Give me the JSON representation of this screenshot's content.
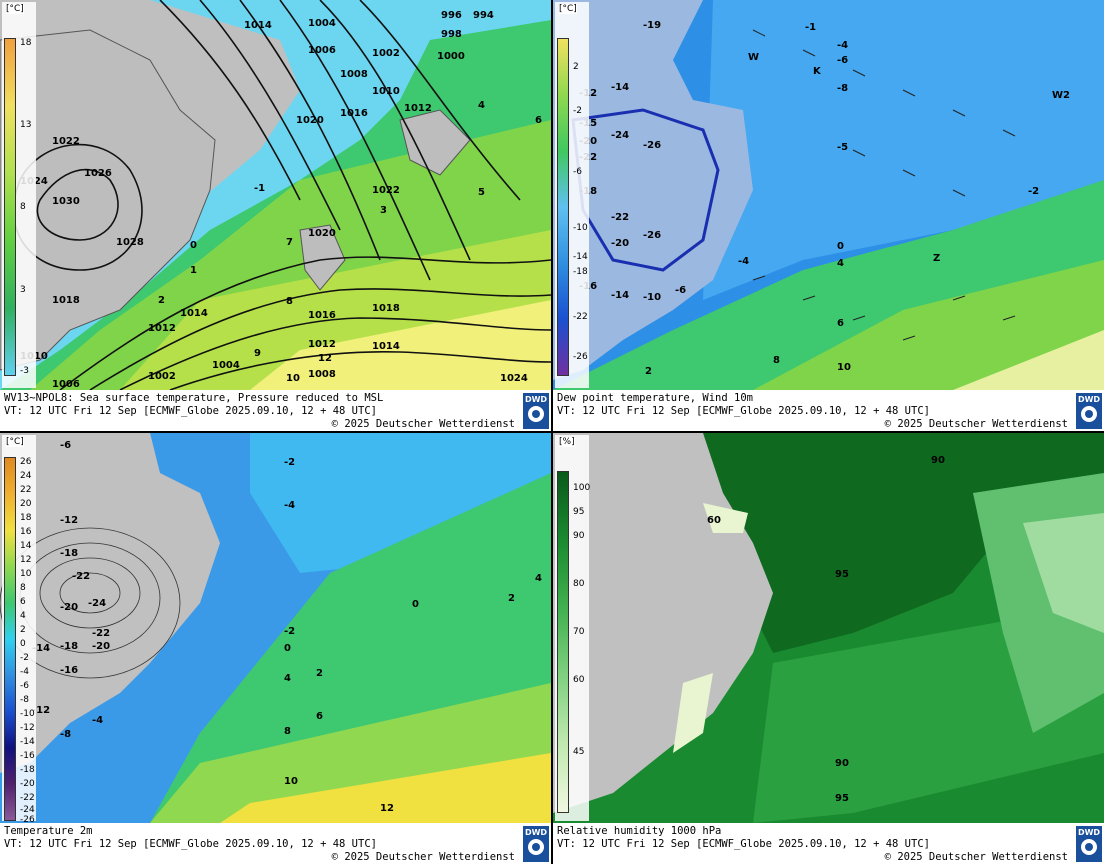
{
  "panels": [
    {
      "id": "sst-mslp",
      "legend": {
        "unit": "[°C]",
        "ticks": [
          "18",
          "13",
          "8",
          "3",
          "-3"
        ]
      },
      "caption_line1": "WV13~NPOL8: Sea surface temperature,  Pressure reduced to MSL",
      "caption_line2": "VT: 12 UTC Fri  12 Sep [ECMWF_Globe 2025.09.10, 12 + 48 UTC]",
      "caption_line3": "© 2025 Deutscher Wetterdienst",
      "isobar_labels": [
        "1014",
        "1004",
        "996",
        "994",
        "998",
        "1000",
        "1006",
        "1002",
        "1008",
        "1010",
        "1016",
        "1012",
        "1020",
        "1022",
        "1024",
        "1026",
        "1030",
        "1028",
        "1018",
        "1012",
        "1022",
        "1020",
        "1016",
        "1018",
        "1014",
        "1012",
        "1008",
        "1004",
        "1002",
        "1006",
        "1010",
        "1014",
        "1024"
      ],
      "sst_labels": [
        "-1",
        "0",
        "1",
        "2",
        "3",
        "4",
        "5",
        "6",
        "7",
        "8",
        "9",
        "10",
        "12",
        "4",
        "6",
        "5",
        "0",
        "1",
        "2"
      ]
    },
    {
      "id": "dewpoint-wind",
      "legend": {
        "unit": "[°C]",
        "ticks": [
          "2",
          "-2",
          "-6",
          "-10",
          "-14",
          "-18",
          "-22",
          "-26"
        ]
      },
      "caption_line1": "Dew point temperature, Wind 10m",
      "caption_line2": "VT: 12 UTC Fri  12 Sep [ECMWF_Globe 2025.09.10,  12 + 48 UTC]",
      "caption_line3": "© 2025 Deutscher Wetterdienst",
      "labels": [
        "-19",
        "-14",
        "-12",
        "-15",
        "-20",
        "-22",
        "-24",
        "-26",
        "-18",
        "-22",
        "-26",
        "-20",
        "-16",
        "-14",
        "-10",
        "-6",
        "-4",
        "0",
        "2",
        "4",
        "6",
        "8",
        "10",
        "-1",
        "-4",
        "-6",
        "-8",
        "-5",
        "-2",
        "K",
        "W",
        "W2",
        "Z"
      ]
    },
    {
      "id": "temp-2m",
      "legend": {
        "unit": "[°C]",
        "ticks": [
          "26",
          "24",
          "22",
          "20",
          "18",
          "16",
          "14",
          "12",
          "10",
          "8",
          "6",
          "4",
          "2",
          "0",
          "-2",
          "-4",
          "-6",
          "-8",
          "-10",
          "-12",
          "-14",
          "-16",
          "-18",
          "-20",
          "-22",
          "-24",
          "-26"
        ]
      },
      "caption_line1": "Temperature 2m",
      "caption_line2": "VT: 12 UTC Fri  12 Sep [ECMWF_Globe 2025.09.10, 12 + 48 UTC]",
      "caption_line3": "© 2025 Deutscher Wetterdienst",
      "labels": [
        "-6",
        "-2",
        "-4",
        "-12",
        "-18",
        "-22",
        "-24",
        "-20",
        "-22",
        "-18",
        "-20",
        "-14",
        "-16",
        "-12",
        "-8",
        "-4",
        "0",
        "2",
        "4",
        "6",
        "8",
        "10",
        "12",
        "-2",
        "0",
        "2",
        "4"
      ]
    },
    {
      "id": "rh-1000",
      "legend": {
        "unit": "[%]",
        "ticks": [
          "100",
          "95",
          "90",
          "80",
          "70",
          "60",
          "45"
        ]
      },
      "caption_line1": "Relative humidity 1000 hPa",
      "caption_line2": "VT: 12 UTC Fri  12 Sep [ECMWF_Globe 2025.09.10, 12 + 48 UTC]",
      "caption_line3": "© 2025 Deutscher Wetterdienst",
      "labels": [
        "90",
        "60",
        "95",
        "90",
        "95"
      ]
    }
  ],
  "logo_text": "DWD"
}
